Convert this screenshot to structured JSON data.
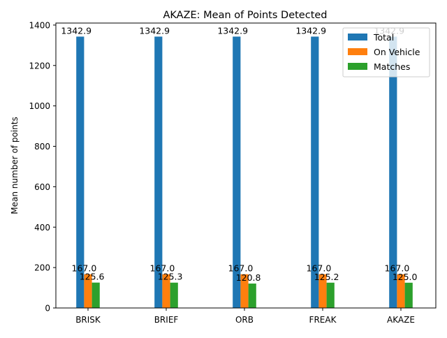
{
  "chart_data": {
    "type": "bar",
    "title": "AKAZE: Mean of Points Detected",
    "xlabel": "",
    "ylabel": "Mean number of points",
    "categories": [
      "BRISK",
      "BRIEF",
      "ORB",
      "FREAK",
      "AKAZE"
    ],
    "ylim": [
      0,
      1410
    ],
    "yticks": [
      0,
      200,
      400,
      600,
      800,
      1000,
      1200,
      1400
    ],
    "grid": false,
    "legend_position": "top-right",
    "series": [
      {
        "name": "Total",
        "color": "#1f77b4",
        "values": [
          1342.9,
          1342.9,
          1342.9,
          1342.9,
          1342.9
        ],
        "labels": [
          "1342.9",
          "1342.9",
          "1342.9",
          "1342.9",
          "1342.9"
        ]
      },
      {
        "name": "On Vehicle",
        "color": "#ff7f0e",
        "values": [
          167.0,
          167.0,
          167.0,
          167.0,
          167.0
        ],
        "labels": [
          "167.0",
          "167.0",
          "167.0",
          "167.0",
          "167.0"
        ]
      },
      {
        "name": "Matches",
        "color": "#2ca02c",
        "values": [
          125.6,
          125.3,
          120.8,
          125.2,
          125.0
        ],
        "labels": [
          "125.6",
          "125.3",
          "120.8",
          "125.2",
          "125.0"
        ]
      }
    ]
  }
}
